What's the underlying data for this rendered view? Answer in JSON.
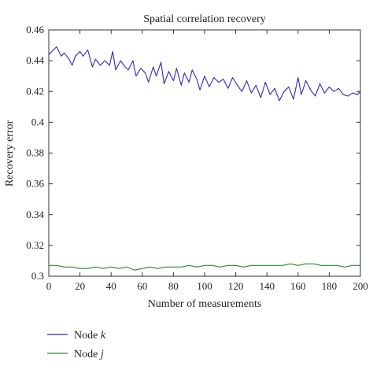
{
  "chart_data": {
    "type": "line",
    "title": "Spatial correlation recovery",
    "xlabel": "Number of measurements",
    "ylabel": "Recovery error",
    "xlim": [
      0,
      200
    ],
    "ylim": [
      0.3,
      0.46
    ],
    "xticks": [
      "0",
      "20",
      "40",
      "60",
      "80",
      "100",
      "120",
      "140",
      "160",
      "180",
      "200"
    ],
    "yticks": [
      "0.3",
      "0.32",
      "0.34",
      "0.36",
      "0.38",
      "0.4",
      "0.42",
      "0.44",
      "0.46"
    ],
    "grid": false,
    "legend_position": "bottom-left-outside",
    "series": [
      {
        "name_prefix": "Node ",
        "name_var": "k",
        "color": "#2b2bb8",
        "x": [
          0,
          3,
          5,
          8,
          10,
          13,
          15,
          17,
          20,
          22,
          25,
          28,
          30,
          33,
          36,
          39,
          41,
          43,
          46,
          49,
          51,
          54,
          56,
          59,
          62,
          64,
          67,
          69,
          72,
          74,
          77,
          80,
          82,
          85,
          87,
          90,
          92,
          95,
          97,
          100,
          103,
          106,
          109,
          112,
          115,
          118,
          121,
          124,
          127,
          130,
          133,
          136,
          139,
          142,
          145,
          148,
          151,
          154,
          157,
          160,
          162,
          165,
          168,
          171,
          174,
          177,
          180,
          183,
          186,
          189,
          192,
          195,
          198,
          200
        ],
        "y": [
          0.444,
          0.447,
          0.449,
          0.443,
          0.445,
          0.441,
          0.437,
          0.443,
          0.446,
          0.443,
          0.447,
          0.436,
          0.441,
          0.437,
          0.44,
          0.437,
          0.446,
          0.434,
          0.44,
          0.436,
          0.434,
          0.44,
          0.43,
          0.435,
          0.432,
          0.426,
          0.436,
          0.43,
          0.439,
          0.425,
          0.433,
          0.427,
          0.435,
          0.424,
          0.432,
          0.426,
          0.434,
          0.428,
          0.421,
          0.43,
          0.423,
          0.429,
          0.426,
          0.428,
          0.422,
          0.429,
          0.424,
          0.42,
          0.427,
          0.419,
          0.424,
          0.416,
          0.426,
          0.418,
          0.422,
          0.414,
          0.42,
          0.423,
          0.415,
          0.429,
          0.418,
          0.427,
          0.421,
          0.417,
          0.425,
          0.419,
          0.423,
          0.42,
          0.422,
          0.418,
          0.417,
          0.419,
          0.418,
          0.42
        ]
      },
      {
        "name_prefix": "Node ",
        "name_var": "j",
        "color": "#2a8a2a",
        "x": [
          0,
          5,
          10,
          15,
          20,
          25,
          30,
          35,
          40,
          45,
          50,
          55,
          60,
          65,
          70,
          75,
          80,
          85,
          90,
          95,
          100,
          105,
          110,
          115,
          120,
          125,
          130,
          135,
          140,
          145,
          150,
          155,
          160,
          165,
          170,
          175,
          180,
          185,
          190,
          195,
          200
        ],
        "y": [
          0.307,
          0.307,
          0.306,
          0.306,
          0.305,
          0.305,
          0.306,
          0.305,
          0.306,
          0.305,
          0.306,
          0.304,
          0.305,
          0.306,
          0.305,
          0.306,
          0.306,
          0.306,
          0.307,
          0.306,
          0.307,
          0.307,
          0.306,
          0.307,
          0.307,
          0.306,
          0.307,
          0.307,
          0.307,
          0.307,
          0.307,
          0.308,
          0.307,
          0.308,
          0.308,
          0.307,
          0.307,
          0.307,
          0.306,
          0.307,
          0.307
        ]
      }
    ]
  }
}
